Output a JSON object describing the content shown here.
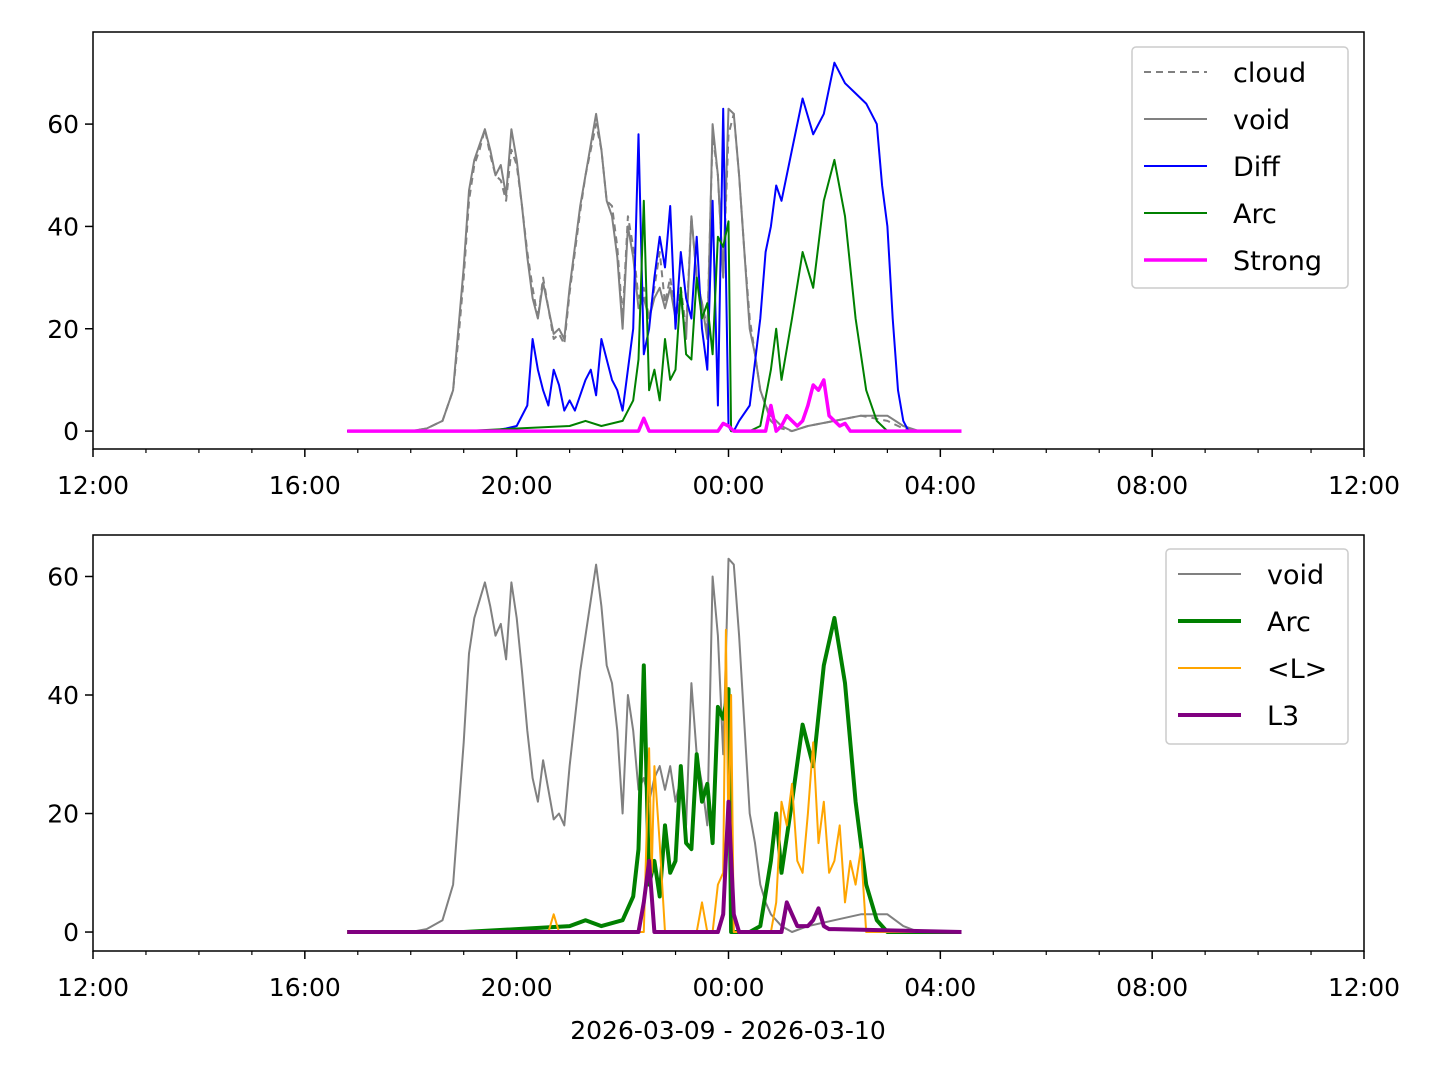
{
  "xlabel": "2026-03-09 - 2026-03-10",
  "chart_data": [
    {
      "type": "line",
      "x_unit": "hours from 2026-03-09 12:00",
      "xlim": [
        0,
        24
      ],
      "ylim": [
        -3.5,
        78
      ],
      "x_ticks": [
        {
          "v": 0,
          "label": "12:00"
        },
        {
          "v": 4,
          "label": "16:00"
        },
        {
          "v": 8,
          "label": "20:00"
        },
        {
          "v": 12,
          "label": "00:00"
        },
        {
          "v": 16,
          "label": "04:00"
        },
        {
          "v": 20,
          "label": "08:00"
        },
        {
          "v": 24,
          "label": "12:00"
        }
      ],
      "y_ticks": [
        {
          "v": 0,
          "label": "0"
        },
        {
          "v": 20,
          "label": "20"
        },
        {
          "v": 40,
          "label": "40"
        },
        {
          "v": 60,
          "label": "60"
        }
      ],
      "legend": "top-right",
      "series": [
        {
          "name": "cloud",
          "color": "#808080",
          "width": 2,
          "dash": "7,5",
          "x": [
            4.8,
            6.0,
            6.3,
            6.6,
            6.8,
            6.9,
            7.0,
            7.1,
            7.2,
            7.3,
            7.4,
            7.5,
            7.6,
            7.7,
            7.8,
            7.9,
            8.0,
            8.1,
            8.2,
            8.3,
            8.4,
            8.5,
            8.6,
            8.7,
            8.8,
            8.9,
            9.0,
            9.1,
            9.2,
            9.3,
            9.4,
            9.5,
            9.6,
            9.7,
            9.8,
            9.9,
            10.0,
            10.1,
            10.2,
            10.3,
            10.4,
            10.5,
            10.6,
            10.7,
            10.8,
            10.9,
            11.0,
            11.1,
            11.2,
            11.3,
            11.4,
            11.5,
            11.6,
            11.7,
            11.8,
            11.9,
            12.0,
            12.1,
            12.2,
            12.3,
            12.4,
            12.5,
            12.6,
            12.7,
            12.8,
            12.9,
            13.0,
            13.2,
            13.5,
            14.0,
            14.5,
            15.0,
            15.3,
            15.6,
            16.0,
            16.4
          ],
          "y": [
            0,
            0,
            0.5,
            2,
            8,
            18,
            30,
            45,
            52,
            55,
            59,
            54,
            50,
            49,
            45,
            55,
            52,
            44,
            35,
            28,
            22,
            30,
            24,
            18,
            19,
            17,
            27,
            35,
            43,
            50,
            55,
            60,
            55,
            45,
            44,
            36,
            22,
            42,
            36,
            26,
            28,
            22,
            28,
            35,
            25,
            30,
            23,
            28,
            20,
            42,
            30,
            25,
            20,
            58,
            50,
            30,
            58,
            62,
            50,
            35,
            22,
            15,
            8,
            5,
            2,
            1,
            0.5,
            0,
            1,
            2,
            3,
            2,
            0.5,
            0,
            0,
            0
          ]
        },
        {
          "name": "void",
          "color": "#808080",
          "width": 2,
          "dash": "",
          "x": [
            4.8,
            6.0,
            6.3,
            6.6,
            6.8,
            6.9,
            7.0,
            7.1,
            7.2,
            7.3,
            7.4,
            7.5,
            7.6,
            7.7,
            7.8,
            7.9,
            8.0,
            8.1,
            8.2,
            8.3,
            8.4,
            8.5,
            8.6,
            8.7,
            8.8,
            8.9,
            9.0,
            9.1,
            9.2,
            9.3,
            9.4,
            9.5,
            9.6,
            9.7,
            9.8,
            9.9,
            10.0,
            10.1,
            10.2,
            10.3,
            10.4,
            10.5,
            10.6,
            10.7,
            10.8,
            10.9,
            11.0,
            11.1,
            11.2,
            11.3,
            11.4,
            11.5,
            11.6,
            11.7,
            11.8,
            11.9,
            12.0,
            12.1,
            12.2,
            12.3,
            12.4,
            12.5,
            12.6,
            12.7,
            12.8,
            12.9,
            13.0,
            13.2,
            13.5,
            14.0,
            14.5,
            15.0,
            15.3,
            15.6,
            16.0,
            16.4
          ],
          "y": [
            0,
            0,
            0.5,
            2,
            8,
            20,
            32,
            47,
            53,
            56,
            59,
            55,
            50,
            52,
            46,
            59,
            53,
            44,
            34,
            26,
            22,
            29,
            24,
            19,
            20,
            18,
            28,
            36,
            44,
            50,
            56,
            62,
            55,
            45,
            42,
            34,
            20,
            40,
            34,
            24,
            26,
            22,
            26,
            28,
            24,
            28,
            22,
            26,
            18,
            42,
            30,
            25,
            18,
            60,
            50,
            30,
            63,
            62,
            50,
            35,
            20,
            15,
            8,
            5,
            3,
            2,
            1,
            0,
            1,
            2,
            3,
            3,
            1,
            0,
            0,
            0
          ]
        },
        {
          "name": "Diff",
          "color": "#0000ff",
          "width": 2,
          "dash": "",
          "x": [
            4.8,
            6.9,
            7.5,
            7.8,
            8.0,
            8.2,
            8.3,
            8.4,
            8.5,
            8.6,
            8.7,
            8.8,
            8.9,
            9.0,
            9.1,
            9.3,
            9.4,
            9.5,
            9.6,
            9.8,
            9.9,
            10.0,
            10.2,
            10.3,
            10.4,
            10.5,
            10.6,
            10.7,
            10.8,
            10.9,
            11.0,
            11.1,
            11.2,
            11.3,
            11.4,
            11.5,
            11.6,
            11.7,
            11.8,
            11.9,
            12.0,
            12.05,
            12.1,
            12.2,
            12.4,
            12.6,
            12.7,
            12.8,
            12.9,
            13.0,
            13.2,
            13.4,
            13.6,
            13.8,
            14.0,
            14.2,
            14.4,
            14.6,
            14.8,
            14.9,
            15.0,
            15.1,
            15.2,
            15.3,
            15.4,
            15.5,
            16.4
          ],
          "y": [
            0,
            0,
            0,
            0.5,
            1,
            5,
            18,
            12,
            8,
            5,
            12,
            9,
            4,
            6,
            4,
            10,
            12,
            7,
            18,
            10,
            8,
            4,
            20,
            58,
            15,
            20,
            30,
            38,
            32,
            44,
            20,
            35,
            26,
            22,
            38,
            20,
            12,
            45,
            5,
            63,
            1,
            0,
            0,
            2,
            5,
            22,
            35,
            40,
            48,
            45,
            55,
            65,
            58,
            62,
            72,
            68,
            66,
            64,
            60,
            48,
            40,
            22,
            8,
            2,
            0,
            0,
            0
          ]
        },
        {
          "name": "Arc",
          "color": "#008000",
          "width": 2,
          "dash": "",
          "x": [
            4.8,
            7.0,
            8.0,
            9.0,
            9.3,
            9.6,
            10.0,
            10.2,
            10.3,
            10.4,
            10.5,
            10.6,
            10.7,
            10.8,
            10.9,
            11.0,
            11.1,
            11.2,
            11.3,
            11.4,
            11.5,
            11.6,
            11.7,
            11.8,
            11.9,
            12.0,
            12.05,
            12.1,
            12.2,
            12.4,
            12.6,
            12.8,
            12.9,
            13.0,
            13.2,
            13.4,
            13.6,
            13.8,
            14.0,
            14.2,
            14.4,
            14.6,
            14.8,
            15.0,
            15.3,
            16.4
          ],
          "y": [
            0,
            0,
            0.5,
            1,
            2,
            1,
            2,
            6,
            14,
            45,
            8,
            12,
            6,
            18,
            10,
            12,
            28,
            15,
            14,
            30,
            22,
            25,
            15,
            38,
            36,
            41,
            0,
            0,
            0,
            0,
            1,
            12,
            20,
            10,
            22,
            35,
            28,
            45,
            53,
            42,
            22,
            8,
            2,
            0,
            0,
            0
          ]
        },
        {
          "name": "Strong",
          "color": "#ff00ff",
          "width": 3.5,
          "dash": "",
          "x": [
            4.8,
            10.3,
            10.4,
            10.5,
            11.8,
            11.9,
            12.0,
            12.1,
            12.7,
            12.8,
            12.9,
            13.0,
            13.1,
            13.2,
            13.3,
            13.4,
            13.5,
            13.6,
            13.7,
            13.8,
            13.9,
            14.0,
            14.1,
            14.2,
            14.3,
            16.4
          ],
          "y": [
            0,
            0,
            2.5,
            0,
            0,
            1.5,
            1,
            0,
            0,
            5,
            0,
            1,
            3,
            2,
            1,
            2,
            5,
            9,
            8,
            10,
            3,
            2,
            1,
            1.5,
            0,
            0
          ]
        }
      ]
    },
    {
      "type": "line",
      "x_unit": "hours from 2026-03-09 12:00",
      "xlim": [
        0,
        24
      ],
      "ylim": [
        -3.2,
        67
      ],
      "x_ticks": [
        {
          "v": 0,
          "label": "12:00"
        },
        {
          "v": 4,
          "label": "16:00"
        },
        {
          "v": 8,
          "label": "20:00"
        },
        {
          "v": 12,
          "label": "00:00"
        },
        {
          "v": 16,
          "label": "04:00"
        },
        {
          "v": 20,
          "label": "08:00"
        },
        {
          "v": 24,
          "label": "12:00"
        }
      ],
      "y_ticks": [
        {
          "v": 0,
          "label": "0"
        },
        {
          "v": 20,
          "label": "20"
        },
        {
          "v": 40,
          "label": "40"
        },
        {
          "v": 60,
          "label": "60"
        }
      ],
      "legend": "top-right",
      "series": [
        {
          "name": "void",
          "color": "#808080",
          "width": 2,
          "dash": "",
          "x": [
            4.8,
            6.0,
            6.3,
            6.6,
            6.8,
            6.9,
            7.0,
            7.1,
            7.2,
            7.3,
            7.4,
            7.5,
            7.6,
            7.7,
            7.8,
            7.9,
            8.0,
            8.1,
            8.2,
            8.3,
            8.4,
            8.5,
            8.6,
            8.7,
            8.8,
            8.9,
            9.0,
            9.1,
            9.2,
            9.3,
            9.4,
            9.5,
            9.6,
            9.7,
            9.8,
            9.9,
            10.0,
            10.1,
            10.2,
            10.3,
            10.4,
            10.5,
            10.6,
            10.7,
            10.8,
            10.9,
            11.0,
            11.1,
            11.2,
            11.3,
            11.4,
            11.5,
            11.6,
            11.7,
            11.8,
            11.9,
            12.0,
            12.1,
            12.2,
            12.3,
            12.4,
            12.5,
            12.6,
            12.7,
            12.8,
            12.9,
            13.0,
            13.2,
            13.5,
            14.0,
            14.5,
            15.0,
            15.3,
            15.6,
            16.0,
            16.4
          ],
          "y": [
            0,
            0,
            0.5,
            2,
            8,
            20,
            32,
            47,
            53,
            56,
            59,
            55,
            50,
            52,
            46,
            59,
            53,
            44,
            34,
            26,
            22,
            29,
            24,
            19,
            20,
            18,
            28,
            36,
            44,
            50,
            56,
            62,
            55,
            45,
            42,
            34,
            20,
            40,
            34,
            24,
            26,
            22,
            26,
            28,
            24,
            28,
            22,
            26,
            18,
            42,
            30,
            25,
            18,
            60,
            50,
            30,
            63,
            62,
            50,
            35,
            20,
            15,
            8,
            5,
            3,
            2,
            1,
            0,
            1,
            2,
            3,
            3,
            1,
            0,
            0,
            0
          ]
        },
        {
          "name": "Arc",
          "color": "#008000",
          "width": 4,
          "dash": "",
          "x": [
            4.8,
            7.0,
            8.0,
            9.0,
            9.3,
            9.6,
            10.0,
            10.2,
            10.3,
            10.4,
            10.5,
            10.6,
            10.7,
            10.8,
            10.9,
            11.0,
            11.1,
            11.2,
            11.3,
            11.4,
            11.5,
            11.6,
            11.7,
            11.8,
            11.9,
            12.0,
            12.05,
            12.1,
            12.2,
            12.4,
            12.6,
            12.8,
            12.9,
            13.0,
            13.2,
            13.4,
            13.6,
            13.8,
            14.0,
            14.2,
            14.4,
            14.6,
            14.8,
            15.0,
            15.3,
            16.4
          ],
          "y": [
            0,
            0,
            0.5,
            1,
            2,
            1,
            2,
            6,
            14,
            45,
            8,
            12,
            6,
            18,
            10,
            12,
            28,
            15,
            14,
            30,
            22,
            25,
            15,
            38,
            36,
            41,
            0,
            0,
            0,
            0,
            1,
            12,
            20,
            10,
            22,
            35,
            28,
            45,
            53,
            42,
            22,
            8,
            2,
            0,
            0,
            0
          ]
        },
        {
          "name": "<L>",
          "color": "#ffa500",
          "width": 2,
          "dash": "",
          "x": [
            4.8,
            8.6,
            8.7,
            8.8,
            10.4,
            10.5,
            10.55,
            10.6,
            10.7,
            10.8,
            11.4,
            11.5,
            11.6,
            11.7,
            11.8,
            11.9,
            11.95,
            12.0,
            12.05,
            12.1,
            12.8,
            12.9,
            13.0,
            13.1,
            13.2,
            13.3,
            13.4,
            13.5,
            13.6,
            13.7,
            13.8,
            13.9,
            14.0,
            14.1,
            14.2,
            14.3,
            14.4,
            14.5,
            14.6,
            16.4
          ],
          "y": [
            0,
            0,
            3,
            0,
            0,
            31,
            10,
            28,
            15,
            0,
            0,
            5,
            0,
            0,
            8,
            10,
            51,
            15,
            40,
            0,
            0,
            5,
            22,
            18,
            25,
            12,
            10,
            20,
            32,
            15,
            22,
            10,
            12,
            18,
            5,
            12,
            8,
            14,
            0,
            0
          ]
        },
        {
          "name": "L3",
          "color": "#800080",
          "width": 4,
          "dash": "",
          "x": [
            4.8,
            10.3,
            10.4,
            10.5,
            10.6,
            11.8,
            11.9,
            12.0,
            12.1,
            12.2,
            13.0,
            13.1,
            13.2,
            13.3,
            13.5,
            13.6,
            13.7,
            13.8,
            13.9,
            14.0,
            16.4
          ],
          "y": [
            0,
            0,
            5,
            12,
            0,
            0,
            3,
            22,
            3,
            0,
            0,
            5,
            3,
            1,
            1,
            2,
            4,
            1,
            0.5,
            0.5,
            0
          ]
        }
      ]
    }
  ]
}
